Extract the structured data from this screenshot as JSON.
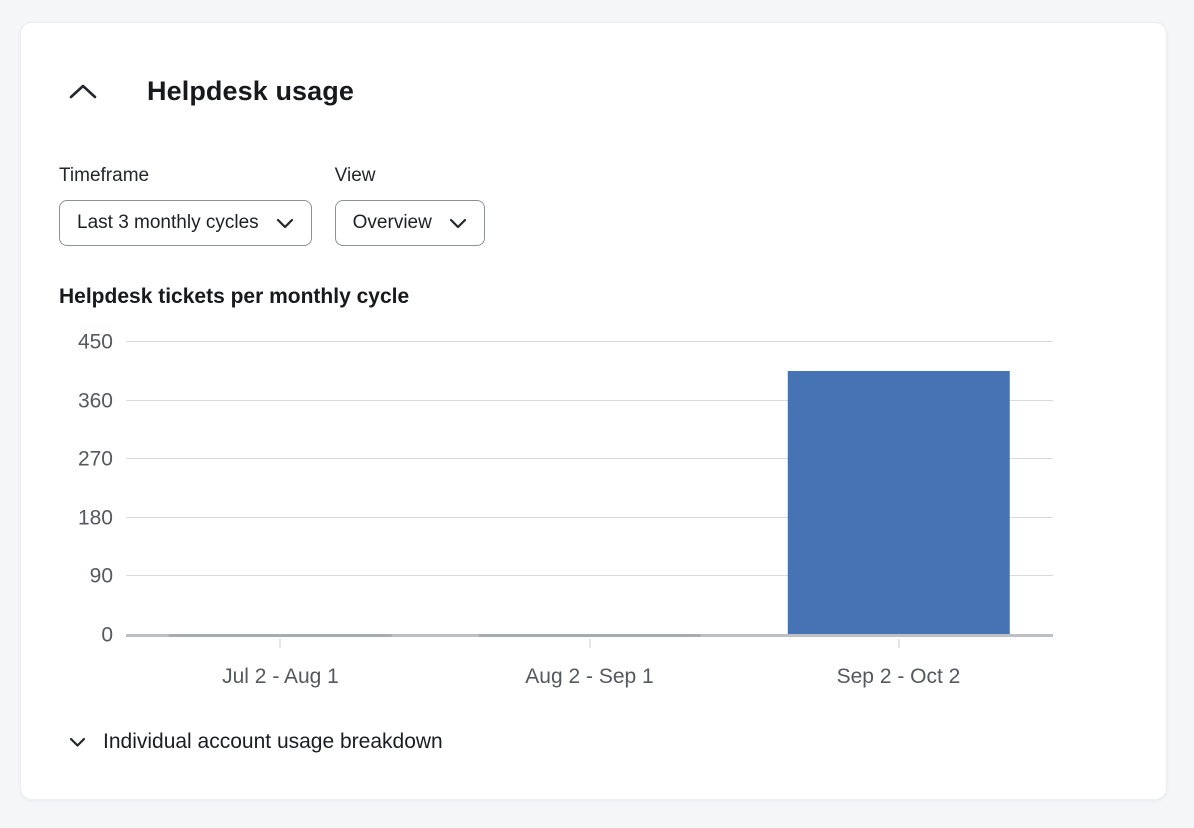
{
  "section": {
    "title": "Helpdesk usage",
    "breakdown_label": "Individual account usage breakdown"
  },
  "filters": {
    "timeframe": {
      "label": "Timeframe",
      "value": "Last 3 monthly cycles"
    },
    "view": {
      "label": "View",
      "value": "Overview"
    }
  },
  "chart_data": {
    "type": "bar",
    "title": "Helpdesk tickets per monthly cycle",
    "categories": [
      "Jul 2 - Aug 1",
      "Aug 2 - Sep 1",
      "Sep 2 - Oct 2"
    ],
    "values": [
      0,
      0,
      405
    ],
    "xlabel": "",
    "ylabel": "",
    "ylim": [
      0,
      450
    ],
    "yticks": [
      0,
      90,
      180,
      270,
      360,
      450
    ],
    "grid": true,
    "legend": "none",
    "bar_color": "#4673b4"
  },
  "colors": {
    "bar": "#4673b4",
    "page_background": "#f5f6f8",
    "card_background": "#ffffff",
    "gridline": "#d8dadd",
    "axis_line": "#bcc0c6",
    "text_primary": "#17191c",
    "text_secondary": "#54585f"
  }
}
